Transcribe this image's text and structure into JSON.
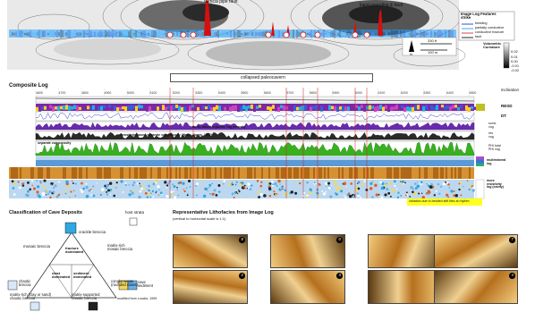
{
  "top_map": {
    "callouts": [
      "vertical pipe\nfault",
      "cavity to be\nsolved",
      "cavity",
      "pipe\nfault",
      "karst sounding\n& fault"
    ],
    "legend_title": "Image Log Features\nstrike",
    "legend_items": [
      "bedding",
      "partially conductive",
      "conductive fracture",
      "fault"
    ],
    "legend_colors": [
      "#1a40d0",
      "#22a0ff",
      "#e03030",
      "#111111"
    ],
    "scale_label_ft": "330 ft",
    "scale_label_m": "100 m",
    "colorbar_title": "Volumetric\nCurvature",
    "colorbar_ticks": [
      "0.02",
      "0.01",
      "0.00",
      "-0.01",
      "-0.02"
    ],
    "north": "N"
  },
  "banner": "collapsed paleocavern",
  "composite": {
    "title": "Composite Log",
    "md_values": [
      "4600",
      "4700",
      "4800",
      "4900",
      "5000",
      "5100",
      "5200",
      "5300",
      "5400",
      "5500",
      "5600",
      "5700",
      "5800",
      "5900",
      "6000",
      "6100",
      "6200",
      "6300",
      "6400",
      "6500"
    ],
    "track_labels": [
      "inclination",
      "RESD",
      "DT",
      "sonic\nvug",
      "res\nvug",
      "PHI total\nPHI vug",
      "multimineral\nlog",
      "more\nresistivity\nlog (cavity)"
    ],
    "annotations": [
      "sonic-based separate vug porosity",
      "resistivity-based separate vug porosity (Wallis-Norris, 1987)",
      "separate vug porosity"
    ]
  },
  "classification": {
    "title": "Classification of Cave Deposits",
    "host_strata": "host strata",
    "crackle_breccia": "crackle breccia",
    "mosaic_breccia": "mosaic breccia",
    "fracture_dominated": "fracture\ndominated",
    "matrix_rich_mosaic": "matrix-rich\nmosaic breccia",
    "clast_dominated": "clast\ndominated",
    "sediment_dominated": "sediment\ndominated",
    "chaotic_breccia": "chaotic\nbreccia",
    "cave_sediment": "cave\nsediment",
    "conglomerate": "conglomerate\n(rounded clasts)",
    "matrix_rich_chaotic": "matrix-rich (clay or sand)\nchaotic breccia",
    "matrix_supported": "matrix-supported\nchaotic breccia",
    "source": "modified from Loucks, 1999"
  },
  "facies": {
    "title": "Representative Lithofacies from Image Log",
    "subtitle": "(vertical to horizontal scale is 1:1)",
    "highlight": "variation due to bedded stiff tiles at rhythm",
    "panel_numbers": [
      "8",
      "0",
      "5",
      "7",
      "2",
      "3",
      "6",
      "4"
    ]
  }
}
